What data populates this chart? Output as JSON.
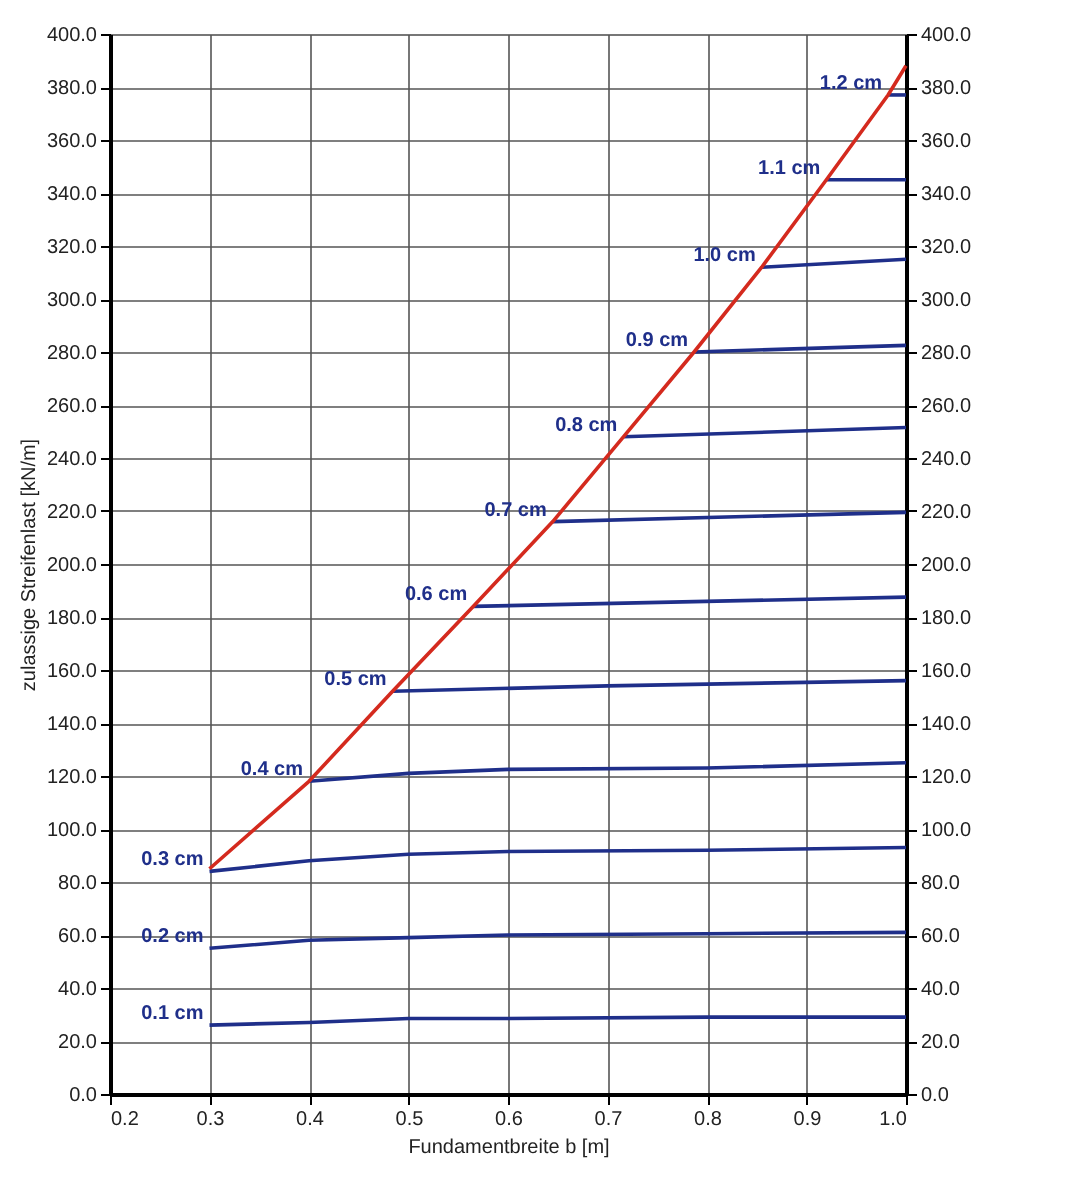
{
  "chart_data": {
    "type": "line",
    "xlabel": "Fundamentbreite b [m]",
    "ylabel": "zulassige Streifenlast [kN/m]",
    "xlim": [
      0.2,
      1.0
    ],
    "xticks": [
      0.2,
      0.3,
      0.4,
      0.5,
      0.6,
      0.7,
      0.8,
      0.9,
      {
        "value": 1.0,
        "label": "1.0"
      }
    ],
    "ylim": [
      0,
      400
    ],
    "yticks": [
      {
        "value": 0,
        "label": "0.0"
      },
      {
        "value": 20,
        "label": "20.0"
      },
      {
        "value": 40,
        "label": "40.0"
      },
      {
        "value": 60,
        "label": "60.0"
      },
      {
        "value": 80,
        "label": "80.0"
      },
      {
        "value": 100,
        "label": "100.0"
      },
      {
        "value": 120,
        "label": "120.0"
      },
      {
        "value": 140,
        "label": "140.0"
      },
      {
        "value": 160,
        "label": "160.0"
      },
      {
        "value": 180,
        "label": "180.0"
      },
      {
        "value": 200,
        "label": "200.0"
      },
      {
        "value": 220,
        "label": "220.0"
      },
      {
        "value": 240,
        "label": "240.0"
      },
      {
        "value": 260,
        "label": "260.0"
      },
      {
        "value": 280,
        "label": "280.0"
      },
      {
        "value": 300,
        "label": "300.0"
      },
      {
        "value": 320,
        "label": "320.0"
      },
      {
        "value": 340,
        "label": "340.0"
      },
      {
        "value": 360,
        "label": "360.0"
      },
      {
        "value": 380,
        "label": "380.0"
      },
      {
        "value": 400,
        "label": "400.0"
      }
    ],
    "y2lim": [
      0,
      400
    ],
    "y2ticks": [
      {
        "value": 0,
        "label": "0.0"
      },
      {
        "value": 20,
        "label": "20.0"
      },
      {
        "value": 40,
        "label": "40.0"
      },
      {
        "value": 60,
        "label": "60.0"
      },
      {
        "value": 80,
        "label": "80.0"
      },
      {
        "value": 100,
        "label": "100.0"
      },
      {
        "value": 120,
        "label": "120.0"
      },
      {
        "value": 140,
        "label": "140.0"
      },
      {
        "value": 160,
        "label": "160.0"
      },
      {
        "value": 180,
        "label": "180.0"
      },
      {
        "value": 200,
        "label": "200.0"
      },
      {
        "value": 220,
        "label": "220.0"
      },
      {
        "value": 240,
        "label": "240.0"
      },
      {
        "value": 260,
        "label": "260.0"
      },
      {
        "value": 280,
        "label": "280.0"
      },
      {
        "value": 300,
        "label": "300.0"
      },
      {
        "value": 320,
        "label": "320.0"
      },
      {
        "value": 340,
        "label": "340.0"
      },
      {
        "value": 360,
        "label": "360.0"
      },
      {
        "value": 380,
        "label": "380.0"
      },
      {
        "value": 400,
        "label": "400.0"
      }
    ],
    "grid": true,
    "legend": false,
    "marker": "none",
    "line_style": "solid",
    "series": [
      {
        "name": "0.1 cm",
        "color": "#1f2f8a",
        "x": [
          0.3,
          0.4,
          0.5,
          0.6,
          0.8,
          1.0
        ],
        "values": [
          26,
          27,
          28.5,
          28.5,
          29,
          29
        ]
      },
      {
        "name": "0.2 cm",
        "color": "#1f2f8a",
        "x": [
          0.3,
          0.4,
          0.5,
          0.6,
          0.8,
          1.0
        ],
        "values": [
          55,
          58,
          59,
          60,
          60.5,
          61
        ]
      },
      {
        "name": "0.3 cm",
        "color": "#1f2f8a",
        "x": [
          0.3,
          0.4,
          0.5,
          0.6,
          0.8,
          1.0
        ],
        "values": [
          84,
          88,
          90.5,
          91.5,
          92,
          93
        ]
      },
      {
        "name": "0.4 cm",
        "color": "#1f2f8a",
        "x": [
          0.4,
          0.5,
          0.6,
          0.8,
          1.0
        ],
        "values": [
          118,
          121,
          122.5,
          123,
          125
        ]
      },
      {
        "name": "0.5 cm",
        "color": "#1f2f8a",
        "x": [
          0.484,
          0.7,
          1.0
        ],
        "values": [
          152,
          154,
          156
        ]
      },
      {
        "name": "0.6 cm",
        "color": "#1f2f8a",
        "x": [
          0.565,
          1.0
        ],
        "values": [
          184,
          187.5
        ]
      },
      {
        "name": "0.7 cm",
        "color": "#1f2f8a",
        "x": [
          0.645,
          1.0
        ],
        "values": [
          216,
          219.5
        ]
      },
      {
        "name": "0.8 cm",
        "color": "#1f2f8a",
        "x": [
          0.716,
          1.0
        ],
        "values": [
          248,
          251.5
        ]
      },
      {
        "name": "0.9 cm",
        "color": "#1f2f8a",
        "x": [
          0.787,
          1.0
        ],
        "values": [
          280,
          282.5
        ]
      },
      {
        "name": "1.0 cm",
        "color": "#1f2f8a",
        "x": [
          0.855,
          1.0
        ],
        "values": [
          312,
          315
        ]
      },
      {
        "name": "1.1 cm",
        "color": "#1f2f8a",
        "x": [
          0.92,
          1.0
        ],
        "values": [
          345,
          345
        ]
      },
      {
        "name": "1.2 cm",
        "color": "#1f2f8a",
        "x": [
          0.982,
          1.0
        ],
        "values": [
          377,
          377
        ]
      },
      {
        "color": "#d42a1e",
        "x": [
          0.3,
          0.4,
          0.484,
          0.565,
          0.645,
          0.716,
          0.787,
          0.855,
          0.92,
          0.982,
          1.0
        ],
        "values": [
          85,
          118,
          152,
          184,
          216,
          248,
          280,
          312,
          345,
          377,
          388
        ]
      }
    ]
  }
}
